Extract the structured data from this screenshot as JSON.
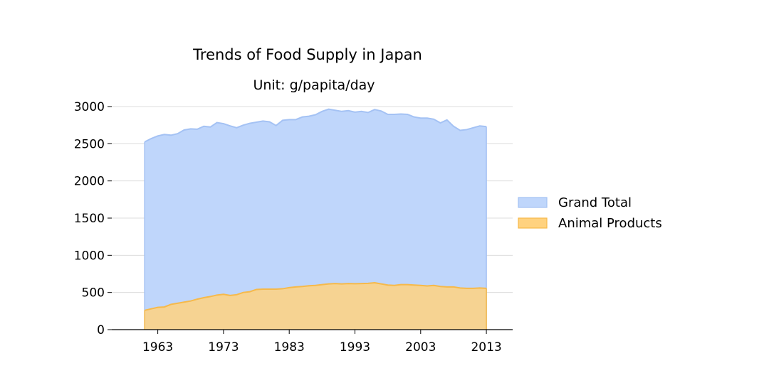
{
  "chart_data": {
    "type": "area",
    "title": "Trends of Food Supply in Japan",
    "subtitle": "Unit: g/papita/day",
    "xlabel": "",
    "ylabel": "",
    "xlim": [
      1956,
      2017
    ],
    "ylim": [
      0,
      3000
    ],
    "x_ticks": [
      1963,
      1973,
      1983,
      1993,
      2003,
      2013
    ],
    "y_ticks": [
      0,
      500,
      1000,
      1500,
      2000,
      2500,
      3000
    ],
    "grid": "horizontal",
    "legend_position": "right",
    "x": [
      1961,
      1962,
      1963,
      1964,
      1965,
      1966,
      1967,
      1968,
      1969,
      1970,
      1971,
      1972,
      1973,
      1974,
      1975,
      1976,
      1977,
      1978,
      1979,
      1980,
      1981,
      1982,
      1983,
      1984,
      1985,
      1986,
      1987,
      1988,
      1989,
      1990,
      1991,
      1992,
      1993,
      1994,
      1995,
      1996,
      1997,
      1998,
      1999,
      2000,
      2001,
      2002,
      2003,
      2004,
      2005,
      2006,
      2007,
      2008,
      2009,
      2010,
      2011,
      2012,
      2013
    ],
    "series": [
      {
        "name": "Grand Total",
        "color": "#a4c2f4",
        "fill": "#bfd6fb",
        "values": [
          2525,
          2570,
          2605,
          2625,
          2615,
          2635,
          2685,
          2700,
          2695,
          2735,
          2725,
          2785,
          2770,
          2740,
          2715,
          2750,
          2775,
          2790,
          2805,
          2795,
          2745,
          2815,
          2825,
          2825,
          2860,
          2870,
          2890,
          2935,
          2965,
          2950,
          2935,
          2945,
          2925,
          2935,
          2920,
          2960,
          2940,
          2895,
          2895,
          2900,
          2895,
          2860,
          2845,
          2845,
          2830,
          2780,
          2820,
          2735,
          2680,
          2690,
          2715,
          2740,
          2730
        ]
      },
      {
        "name": "Animal Products",
        "color": "#f6b94a",
        "fill": "#ffd27f",
        "values": [
          260,
          280,
          300,
          305,
          340,
          355,
          370,
          385,
          410,
          430,
          445,
          465,
          475,
          460,
          470,
          500,
          510,
          540,
          545,
          545,
          545,
          550,
          565,
          575,
          580,
          590,
          595,
          605,
          615,
          620,
          615,
          620,
          618,
          620,
          622,
          630,
          615,
          600,
          595,
          605,
          605,
          600,
          595,
          588,
          595,
          580,
          575,
          575,
          560,
          555,
          555,
          560,
          555
        ]
      }
    ]
  }
}
